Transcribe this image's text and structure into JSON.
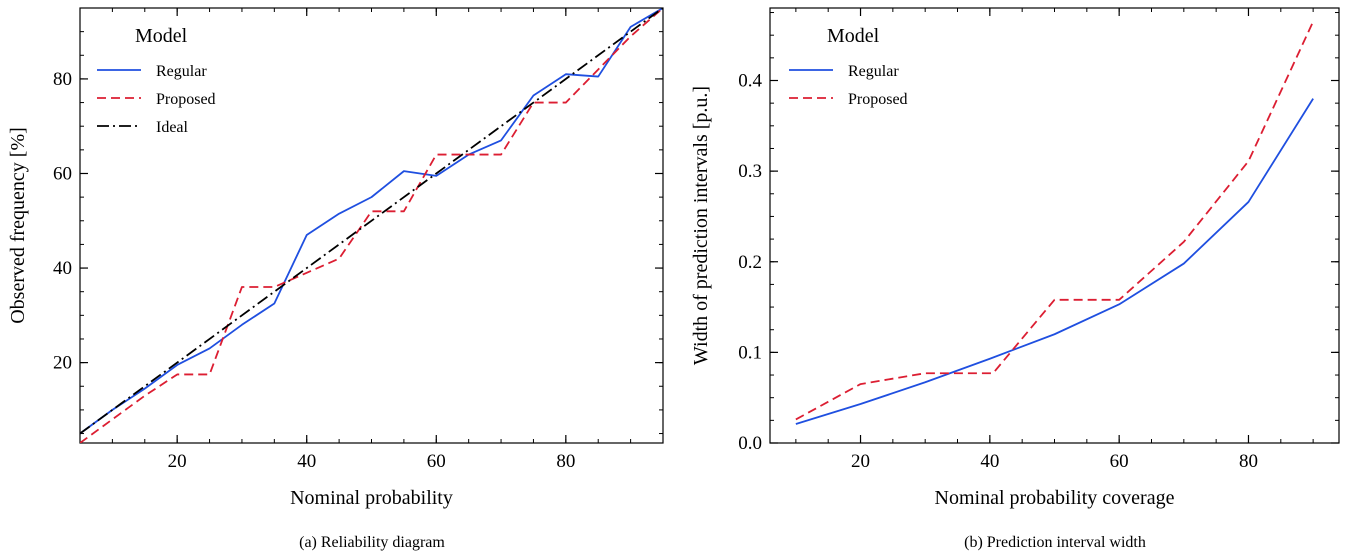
{
  "colors": {
    "regular": "#1f4fe0",
    "proposed": "#dc1e32",
    "ideal": "#000000"
  },
  "chart_data": [
    {
      "type": "line",
      "caption": "(a) Reliability diagram",
      "xlabel": "Nominal probability",
      "ylabel": "Observed frequency [%]",
      "xlim": [
        5,
        95
      ],
      "ylim": [
        3,
        95
      ],
      "xticks": [
        20,
        40,
        60,
        80
      ],
      "yticks": [
        20,
        40,
        60,
        80
      ],
      "grid": false,
      "legend_title": "Model",
      "legend_position": "top-left",
      "series": [
        {
          "name": "Regular",
          "style": "solid",
          "color": "#1f4fe0",
          "x": [
            5,
            10,
            15,
            20,
            25,
            30,
            35,
            40,
            45,
            50,
            55,
            60,
            65,
            70,
            75,
            80,
            85,
            90,
            95
          ],
          "y": [
            5,
            10,
            14.5,
            19.5,
            23,
            28,
            32.5,
            47,
            51.5,
            55,
            60.5,
            59.5,
            64,
            67,
            76.5,
            81,
            80.5,
            91,
            95
          ]
        },
        {
          "name": "Proposed",
          "style": "dashed",
          "color": "#dc1e32",
          "x": [
            5,
            10,
            15,
            20,
            25,
            30,
            35,
            40,
            45,
            50,
            55,
            60,
            65,
            70,
            75,
            80,
            85,
            90,
            95
          ],
          "y": [
            3,
            8,
            13,
            17.5,
            17.5,
            36,
            36,
            39,
            42,
            52,
            52,
            64,
            64,
            64,
            75,
            75,
            82,
            89,
            95
          ]
        },
        {
          "name": "Ideal",
          "style": "dashdot",
          "color": "#000000",
          "x": [
            5,
            95
          ],
          "y": [
            5,
            95
          ]
        }
      ]
    },
    {
      "type": "line",
      "caption": "(b) Prediction interval width",
      "xlabel": "Nominal probability coverage",
      "ylabel": "Width of prediction intervals [p.u.]",
      "xlim": [
        6,
        94
      ],
      "ylim": [
        0,
        0.48
      ],
      "xticks": [
        20,
        40,
        60,
        80
      ],
      "yticks": [
        0.0,
        0.1,
        0.2,
        0.3,
        0.4
      ],
      "ytick_labels": [
        "0.0",
        "0.1",
        "0.2",
        "0.3",
        "0.4"
      ],
      "grid": false,
      "legend_title": "Model",
      "legend_position": "top-left",
      "series": [
        {
          "name": "Regular",
          "style": "solid",
          "color": "#1f4fe0",
          "x": [
            10,
            20,
            30,
            40,
            50,
            60,
            70,
            80,
            90
          ],
          "y": [
            0.021,
            0.043,
            0.067,
            0.093,
            0.12,
            0.153,
            0.198,
            0.266,
            0.38
          ]
        },
        {
          "name": "Proposed",
          "style": "dashed",
          "color": "#dc1e32",
          "x": [
            10,
            20,
            30,
            40,
            40.5,
            50,
            60,
            70,
            80,
            90
          ],
          "y": [
            0.026,
            0.065,
            0.077,
            0.077,
            0.077,
            0.158,
            0.158,
            0.222,
            0.311,
            0.465
          ]
        }
      ]
    }
  ]
}
